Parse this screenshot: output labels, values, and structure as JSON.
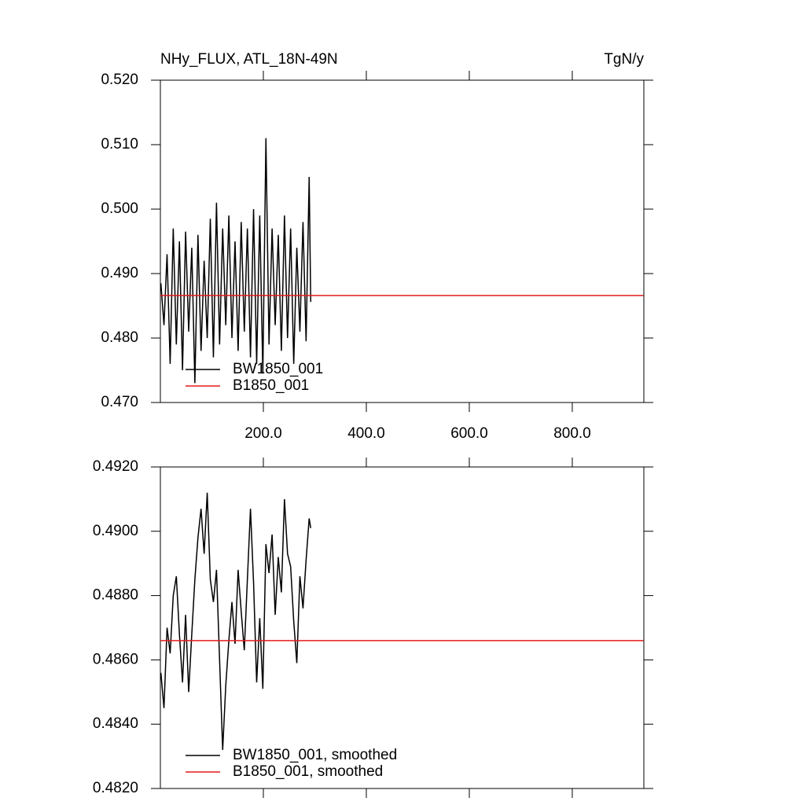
{
  "chart_data": [
    {
      "type": "line",
      "title_left": "NHy_FLUX, ATL_18N-49N",
      "title_right": "TgN/y",
      "xlim": [
        0,
        939
      ],
      "ylim": [
        0.47,
        0.52
      ],
      "xticks": [
        {
          "value": 200,
          "label": "200.0"
        },
        {
          "value": 400,
          "label": "400.0"
        },
        {
          "value": 600,
          "label": "600.0"
        },
        {
          "value": 800,
          "label": "800.0"
        }
      ],
      "yticks": [
        {
          "value": 0.47,
          "label": "0.470"
        },
        {
          "value": 0.48,
          "label": "0.480"
        },
        {
          "value": 0.49,
          "label": "0.490"
        },
        {
          "value": 0.5,
          "label": "0.500"
        },
        {
          "value": 0.51,
          "label": "0.510"
        },
        {
          "value": 0.52,
          "label": "0.520"
        }
      ],
      "legend": "lower left",
      "series": [
        {
          "name": "BW1850_001",
          "color": "#000000",
          "x": [
            1,
            7,
            13,
            19,
            25,
            31,
            37,
            43,
            49,
            55,
            61,
            67,
            73,
            79,
            85,
            91,
            97,
            103,
            109,
            115,
            121,
            127,
            133,
            139,
            145,
            151,
            157,
            163,
            169,
            175,
            181,
            187,
            193,
            199,
            205,
            211,
            217,
            223,
            229,
            235,
            241,
            247,
            253,
            259,
            265,
            271,
            277,
            283,
            289,
            292
          ],
          "values": [
            0.4885,
            0.482,
            0.493,
            0.476,
            0.497,
            0.479,
            0.495,
            0.475,
            0.4965,
            0.481,
            0.494,
            0.473,
            0.496,
            0.478,
            0.492,
            0.48,
            0.4985,
            0.477,
            0.501,
            0.479,
            0.497,
            0.482,
            0.499,
            0.48,
            0.495,
            0.478,
            0.498,
            0.481,
            0.497,
            0.477,
            0.5,
            0.476,
            0.499,
            0.4745,
            0.511,
            0.479,
            0.497,
            0.482,
            0.496,
            0.478,
            0.499,
            0.48,
            0.497,
            0.476,
            0.494,
            0.481,
            0.498,
            0.4795,
            0.505,
            0.4856
          ]
        },
        {
          "name": "B1850_001",
          "color": "#e41a1c",
          "x": [
            0,
            938
          ],
          "values": [
            0.4866,
            0.4866
          ]
        }
      ]
    },
    {
      "type": "line",
      "xlim": [
        0,
        939
      ],
      "ylim": [
        0.482,
        0.492
      ],
      "xticks": [
        200,
        400,
        600,
        800
      ],
      "yticks": [
        {
          "value": 0.482,
          "label": "0.4820"
        },
        {
          "value": 0.484,
          "label": "0.4840"
        },
        {
          "value": 0.486,
          "label": "0.4860"
        },
        {
          "value": 0.488,
          "label": "0.4880"
        },
        {
          "value": 0.49,
          "label": "0.4900"
        },
        {
          "value": 0.492,
          "label": "0.4920"
        }
      ],
      "legend": "lower left",
      "series": [
        {
          "name": "BW1850_001, smoothed",
          "color": "#000000",
          "x": [
            1,
            7,
            13,
            19,
            25,
            31,
            37,
            43,
            49,
            55,
            61,
            67,
            73,
            79,
            85,
            91,
            97,
            103,
            109,
            115,
            121,
            127,
            133,
            139,
            145,
            151,
            157,
            163,
            169,
            175,
            181,
            187,
            193,
            199,
            205,
            211,
            217,
            223,
            229,
            235,
            241,
            247,
            253,
            259,
            265,
            271,
            277,
            283,
            289,
            292
          ],
          "values": [
            0.4856,
            0.4845,
            0.487,
            0.4862,
            0.488,
            0.4886,
            0.4868,
            0.4853,
            0.4874,
            0.485,
            0.4868,
            0.4885,
            0.4898,
            0.4907,
            0.4893,
            0.4912,
            0.4885,
            0.4878,
            0.4888,
            0.486,
            0.4832,
            0.4852,
            0.4866,
            0.4878,
            0.4865,
            0.4888,
            0.4875,
            0.4863,
            0.4885,
            0.4907,
            0.4884,
            0.4853,
            0.4873,
            0.4851,
            0.4896,
            0.4887,
            0.4899,
            0.4874,
            0.4892,
            0.4881,
            0.491,
            0.4893,
            0.4889,
            0.4872,
            0.4859,
            0.4886,
            0.4876,
            0.4891,
            0.4904,
            0.4901
          ]
        },
        {
          "name": "B1850_001, smoothed",
          "color": "#e41a1c",
          "x": [
            0,
            938
          ],
          "values": [
            0.4866,
            0.4866
          ]
        }
      ]
    }
  ]
}
